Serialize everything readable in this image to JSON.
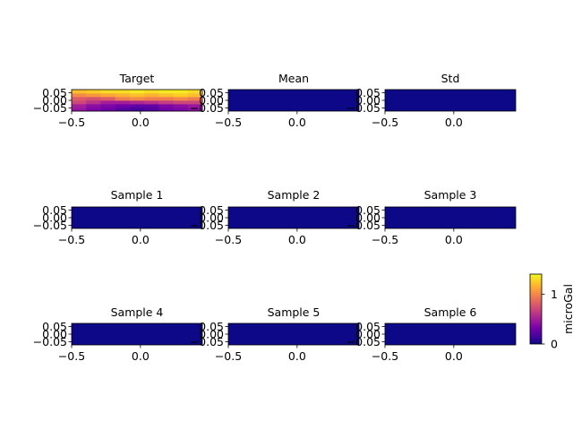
{
  "figure": {
    "colormap": "plasma",
    "colors": [
      "#0d0887",
      "#46039f",
      "#7201a8",
      "#9c179e",
      "#bd3786",
      "#d8576b",
      "#ed7953",
      "#fb9f3a",
      "#fdca26",
      "#f0f921"
    ]
  },
  "chart_data": [
    {
      "type": "heatmap",
      "title": "Target",
      "xlim": [
        -0.5,
        0.45
      ],
      "ylim": [
        -0.07,
        0.07
      ],
      "xticks": [
        "-0.5",
        "0.0"
      ],
      "yticks": [
        "0.05",
        "0.00",
        "-0.05"
      ],
      "x": [
        -0.45,
        -0.35,
        -0.25,
        -0.15,
        -0.05,
        0.05,
        0.15,
        0.25,
        0.35
      ],
      "y": [
        -0.0625,
        -0.0375,
        -0.0125,
        0.0125,
        0.0375,
        0.0625
      ],
      "z": [
        [
          0.45,
          0.35,
          0.3,
          0.2,
          0.15,
          0.2,
          0.3,
          0.35,
          0.4
        ],
        [
          0.5,
          0.4,
          0.35,
          0.3,
          0.25,
          0.25,
          0.35,
          0.4,
          0.45
        ],
        [
          0.7,
          0.6,
          0.5,
          0.5,
          0.55,
          0.6,
          0.65,
          0.7,
          0.7
        ],
        [
          0.8,
          0.75,
          0.8,
          0.95,
          1.0,
          0.95,
          0.95,
          1.0,
          0.95
        ],
        [
          1.0,
          1.05,
          1.1,
          1.15,
          1.2,
          1.15,
          1.2,
          1.25,
          1.2
        ],
        [
          1.2,
          1.25,
          1.3,
          1.3,
          1.35,
          1.3,
          1.35,
          1.35,
          1.3
        ]
      ]
    },
    {
      "type": "heatmap",
      "title": "Mean",
      "xlim": [
        -0.5,
        0.45
      ],
      "ylim": [
        -0.07,
        0.07
      ],
      "xticks": [
        "-0.5",
        "0.0"
      ],
      "yticks": [
        "0.05",
        "0.00",
        "-0.05"
      ],
      "value": 0
    },
    {
      "type": "heatmap",
      "title": "Std",
      "xlim": [
        -0.5,
        0.45
      ],
      "ylim": [
        -0.07,
        0.07
      ],
      "xticks": [
        "-0.5",
        "0.0"
      ],
      "yticks": [
        "0.05",
        "0.00",
        "-0.05"
      ],
      "value": 0
    },
    {
      "type": "heatmap",
      "title": "Sample 1",
      "xlim": [
        -0.5,
        0.45
      ],
      "ylim": [
        -0.07,
        0.07
      ],
      "xticks": [
        "-0.5",
        "0.0"
      ],
      "yticks": [
        "0.05",
        "0.00",
        "-0.05"
      ],
      "value": 0
    },
    {
      "type": "heatmap",
      "title": "Sample 2",
      "xlim": [
        -0.5,
        0.45
      ],
      "ylim": [
        -0.07,
        0.07
      ],
      "xticks": [
        "-0.5",
        "0.0"
      ],
      "yticks": [
        "0.05",
        "0.00",
        "-0.05"
      ],
      "value": 0
    },
    {
      "type": "heatmap",
      "title": "Sample 3",
      "xlim": [
        -0.5,
        0.45
      ],
      "ylim": [
        -0.07,
        0.07
      ],
      "xticks": [
        "-0.5",
        "0.0"
      ],
      "yticks": [
        "0.05",
        "0.00",
        "-0.05"
      ],
      "value": 0
    },
    {
      "type": "heatmap",
      "title": "Sample 4",
      "xlim": [
        -0.5,
        0.45
      ],
      "ylim": [
        -0.07,
        0.07
      ],
      "xticks": [
        "-0.5",
        "0.0"
      ],
      "yticks": [
        "0.05",
        "0.00",
        "-0.05"
      ],
      "value": 0
    },
    {
      "type": "heatmap",
      "title": "Sample 5",
      "xlim": [
        -0.5,
        0.45
      ],
      "ylim": [
        -0.07,
        0.07
      ],
      "xticks": [
        "-0.5",
        "0.0"
      ],
      "yticks": [
        "0.05",
        "0.00",
        "-0.05"
      ],
      "value": 0
    },
    {
      "type": "heatmap",
      "title": "Sample 6",
      "xlim": [
        -0.5,
        0.45
      ],
      "ylim": [
        -0.07,
        0.07
      ],
      "xticks": [
        "-0.5",
        "0.0"
      ],
      "yticks": [
        "0.05",
        "0.00",
        "-0.05"
      ],
      "value": 0
    }
  ],
  "colorbar": {
    "label": "microGal",
    "range": [
      0,
      1.4
    ],
    "ticks": [
      {
        "value": 0,
        "label": "0"
      },
      {
        "value": 1,
        "label": "1"
      }
    ]
  }
}
